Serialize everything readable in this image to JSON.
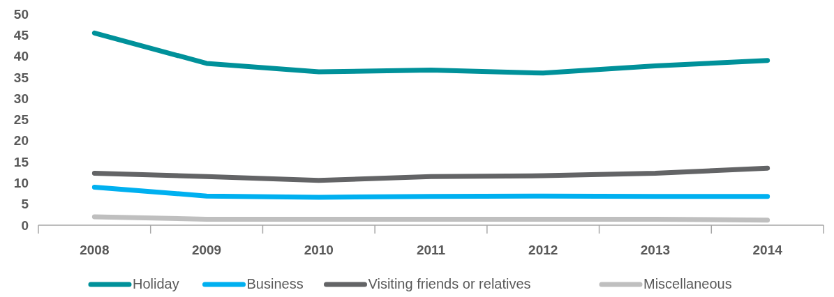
{
  "chart_data": {
    "type": "line",
    "categories": [
      "2008",
      "2009",
      "2010",
      "2011",
      "2012",
      "2013",
      "2014"
    ],
    "series": [
      {
        "name": "Holiday",
        "color": "#00919a",
        "values": [
          45.5,
          38.3,
          36.3,
          36.7,
          36,
          37.7,
          39
        ]
      },
      {
        "name": "Business",
        "color": "#00b0f0",
        "values": [
          9,
          6.9,
          6.6,
          6.8,
          6.9,
          6.8,
          6.8
        ]
      },
      {
        "name": "Visiting friends or relatives",
        "color": "#636466",
        "values": [
          12.3,
          11.5,
          10.6,
          11.5,
          11.7,
          12.3,
          13.5
        ]
      },
      {
        "name": "Miscellaneous",
        "color": "#bfbfbf",
        "values": [
          2,
          1.4,
          1.4,
          1.4,
          1.4,
          1.4,
          1.2
        ]
      }
    ],
    "ylim": [
      0,
      50
    ],
    "yticks": [
      0,
      5,
      10,
      15,
      20,
      25,
      30,
      35,
      40,
      45,
      50
    ],
    "grid": false,
    "legend": "bottom",
    "marker": "none",
    "line_style": "solid"
  }
}
